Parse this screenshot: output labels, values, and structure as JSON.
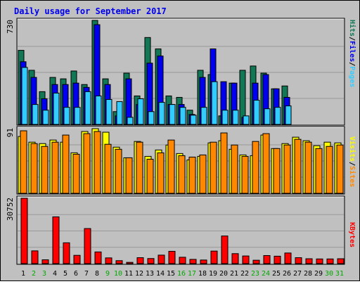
{
  "chart_data": {
    "type": "bar",
    "title": "Daily usage for September 2017",
    "categories": [
      "1",
      "2",
      "3",
      "4",
      "5",
      "6",
      "7",
      "8",
      "9",
      "10",
      "11",
      "12",
      "13",
      "14",
      "15",
      "16",
      "17",
      "18",
      "19",
      "20",
      "21",
      "22",
      "23",
      "24",
      "25",
      "26",
      "27",
      "28",
      "29",
      "30",
      "31"
    ],
    "weekend_days": [
      "2",
      "3",
      "9",
      "10",
      "16",
      "17",
      "23",
      "24",
      "30",
      "31"
    ],
    "panels": [
      {
        "id": "hits-files-pages",
        "max_label": "730",
        "ymax": 730,
        "axis_labels": [
          {
            "text": "Pages",
            "color": "#33ccff"
          },
          {
            "text": "Files",
            "color": "#0000ee"
          },
          {
            "text": "Hits",
            "color": "#117755"
          }
        ],
        "separator": "/",
        "series": [
          {
            "name": "Hits",
            "color": "#117755",
            "values": [
              520,
              380,
              230,
              330,
              320,
              375,
              280,
              730,
              320,
              90,
              360,
              200,
              610,
              530,
              200,
              190,
              100,
              380,
              350,
              60,
              290,
              380,
              410,
              360,
              250,
              270,
              0,
              0,
              0,
              0,
              0
            ]
          },
          {
            "name": "Files",
            "color": "#0000ee",
            "values": [
              440,
              330,
              180,
              280,
              280,
              290,
              260,
              700,
              280,
              60,
              320,
              140,
              430,
              480,
              140,
              140,
              70,
              330,
              530,
              300,
              290,
              50,
              290,
              350,
              250,
              190,
              0,
              0,
              0,
              0,
              0
            ]
          },
          {
            "name": "Pages",
            "color": "#33ccff",
            "values": [
              400,
              140,
              100,
              220,
              120,
              120,
              230,
              200,
              175,
              160,
              50,
              180,
              90,
              155,
              140,
              120,
              65,
              120,
              300,
              100,
              100,
              60,
              170,
              110,
              120,
              130,
              0,
              0,
              0,
              0,
              0
            ]
          }
        ]
      },
      {
        "id": "visits-sites",
        "max_label": "91",
        "ymax": 91,
        "axis_labels": [
          {
            "text": "Sites",
            "color": "#ff8800"
          },
          {
            "text": "Visits",
            "color": "#ffff00"
          }
        ],
        "separator": "/",
        "series": [
          {
            "name": "Visits",
            "color": "#ffff00",
            "values": [
              80,
              72,
              70,
              75,
              72,
              57,
              87,
              91,
              86,
              65,
              50,
              73,
              52,
              61,
              68,
              56,
              47,
              52,
              71,
              74,
              62,
              54,
              53,
              82,
              63,
              70,
              79,
              74,
              67,
              72,
              71
            ]
          },
          {
            "name": "Sites",
            "color": "#ff8800",
            "values": [
              88,
              70,
              66,
              72,
              82,
              55,
              84,
              87,
              69,
              62,
              50,
              72,
              48,
              57,
              75,
              53,
              51,
              54,
              72,
              85,
              68,
              52,
              73,
              84,
              63,
              68,
              76,
              72,
              63,
              66,
              68
            ]
          }
        ]
      },
      {
        "id": "kbytes",
        "max_label": "30752",
        "ymax": 30752,
        "axis_labels": [
          {
            "text": "KBytes",
            "color": "#ff0000"
          }
        ],
        "separator": "",
        "series": [
          {
            "name": "KBytes",
            "color": "#ff0000",
            "values": [
              30752,
              6000,
              1800,
              22000,
              9800,
              3900,
              16500,
              5500,
              2700,
              1400,
              600,
              2800,
              2400,
              4000,
              5800,
              3000,
              2000,
              1700,
              5900,
              13000,
              4700,
              3600,
              1600,
              3800,
              3500,
              5000,
              2800,
              2300,
              2200,
              2200,
              2300
            ]
          }
        ]
      }
    ]
  },
  "colors": {
    "title": "#0000ee",
    "background": "#c0c0c0",
    "plot_background": "#c0c0c0",
    "weekday_label": "#000000",
    "weekend_label": "#00aa00"
  }
}
